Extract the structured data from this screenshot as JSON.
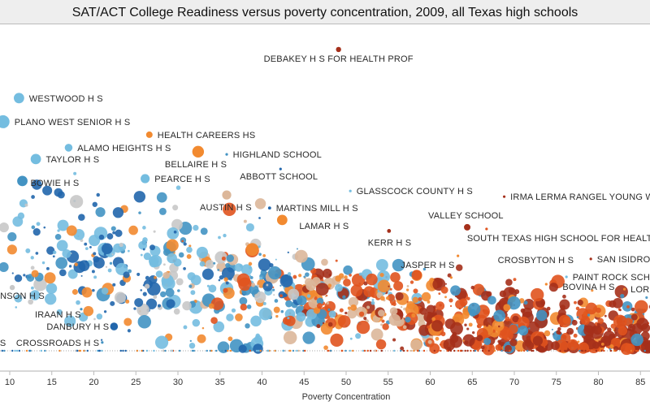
{
  "chart_data": {
    "type": "scatter",
    "title": "SAT/ACT College Readiness versus poverty concentration, 2009, all Texas high schools",
    "xlabel": "Poverty Concentration",
    "ylabel": "",
    "xlim": [
      8,
      88
    ],
    "xticks": [
      10,
      15,
      20,
      25,
      30,
      35,
      40,
      45,
      50,
      55,
      60,
      65,
      70,
      75,
      80,
      85
    ],
    "y_axis_shown": false,
    "grid": false,
    "legend": "none",
    "colors": {
      "dark_blue": "#2166ac",
      "blue": "#4393c3",
      "light_blue": "#74bde0",
      "grey": "#c8c8c8",
      "tan": "#dcb79a",
      "orange": "#f28a30",
      "red_orange": "#e0531e",
      "dark_red": "#a5301b"
    },
    "labeled_points": [
      {
        "name": "DEBAKEY H S FOR HEALTH PROF",
        "x": 49.1,
        "y": 90.5,
        "color": "dark_red",
        "size": 2
      },
      {
        "name": "WESTWOOD H S",
        "x": 11.1,
        "y": 75.9,
        "color": "light_blue",
        "size": 4
      },
      {
        "name": "PLANO WEST SENIOR H S",
        "x": 9.2,
        "y": 68.8,
        "color": "light_blue",
        "size": 5
      },
      {
        "name": "HEALTH CAREERS HS",
        "x": 26.6,
        "y": 64.9,
        "color": "orange",
        "size": 2.5
      },
      {
        "name": "ALAMO HEIGHTS H S",
        "x": 17.0,
        "y": 61.0,
        "color": "light_blue",
        "size": 3
      },
      {
        "name": "TAYLOR H S",
        "x": 13.1,
        "y": 57.6,
        "color": "light_blue",
        "size": 4
      },
      {
        "name": "BOWIE H S",
        "x": 11.5,
        "y": 51.0,
        "color": "blue",
        "size": 4
      },
      {
        "name": "BELLAIRE H S",
        "x": 32.4,
        "y": 59.8,
        "color": "orange",
        "size": 4.5
      },
      {
        "name": "HIGHLAND SCHOOL",
        "x": 35.8,
        "y": 59.0,
        "color": "blue",
        "size": 1
      },
      {
        "name": "ABBOTT SCHOOL",
        "x": 42.2,
        "y": 54.6,
        "color": "dark_blue",
        "size": 1
      },
      {
        "name": "PEARCE H S",
        "x": 26.1,
        "y": 51.7,
        "color": "light_blue",
        "size": 3.5
      },
      {
        "name": "AUSTIN H S",
        "x": 35.8,
        "y": 46.8,
        "color": "tan",
        "size": 3.5
      },
      {
        "name": "MARTINS MILL H S",
        "x": 40.9,
        "y": 42.9,
        "color": "dark_blue",
        "size": 1.2
      },
      {
        "name": "GLASSCOCK COUNTY H S",
        "x": 50.5,
        "y": 48.0,
        "color": "light_blue",
        "size": 1
      },
      {
        "name": "IRMA LERMA RANGEL YOUNG W",
        "x": 68.8,
        "y": 46.3,
        "color": "dark_red",
        "size": 1
      },
      {
        "name": "VALLEY SCHOOL",
        "x": 64.4,
        "y": 37.1,
        "color": "dark_red",
        "size": 2.5
      },
      {
        "name": "LAMAR H S",
        "x": 42.4,
        "y": 39.3,
        "color": "orange",
        "size": 4
      },
      {
        "name": "KERR H S",
        "x": 55.1,
        "y": 36.0,
        "color": "dark_red",
        "size": 1.5
      },
      {
        "name": "SOUTH TEXAS HIGH SCHOOL FOR HEALTH",
        "x": 66.7,
        "y": 36.6,
        "color": "red_orange",
        "size": 1
      },
      {
        "name": "CROSBYTON H S",
        "x": 63.3,
        "y": 28.5,
        "color": "orange",
        "size": 1
      },
      {
        "name": "SAN ISIDRO",
        "x": 79.1,
        "y": 27.6,
        "color": "dark_red",
        "size": 1
      },
      {
        "name": "JASPER H S",
        "x": 62.5,
        "y": 22.0,
        "color": "orange",
        "size": 1
      },
      {
        "name": "PAINT ROCK SCHO",
        "x": 76.2,
        "y": 22.2,
        "color": "light_blue",
        "size": 1
      },
      {
        "name": "BOVINA H S",
        "x": 73.8,
        "y": 20.0,
        "color": "orange",
        "size": 1
      },
      {
        "name": "LOR",
        "x": 83.1,
        "y": 18.5,
        "color": "orange",
        "size": 1
      },
      {
        "name": "NSON H S",
        "x": 10.3,
        "y": 19.0,
        "color": "grey",
        "size": 2
      },
      {
        "name": "IRAAN H S",
        "x": 18.5,
        "y": 12.5,
        "color": "blue",
        "size": 1
      },
      {
        "name": "DANBURY H S",
        "x": 22.4,
        "y": 7.3,
        "color": "dark_blue",
        "size": 3
      },
      {
        "name": "CROSSROADS H S",
        "x": 21.0,
        "y": 2.5,
        "color": "blue",
        "size": 1
      },
      {
        "name": "H S",
        "x": 8.5,
        "y": 2.5,
        "color": "blue",
        "size": 1
      }
    ]
  }
}
